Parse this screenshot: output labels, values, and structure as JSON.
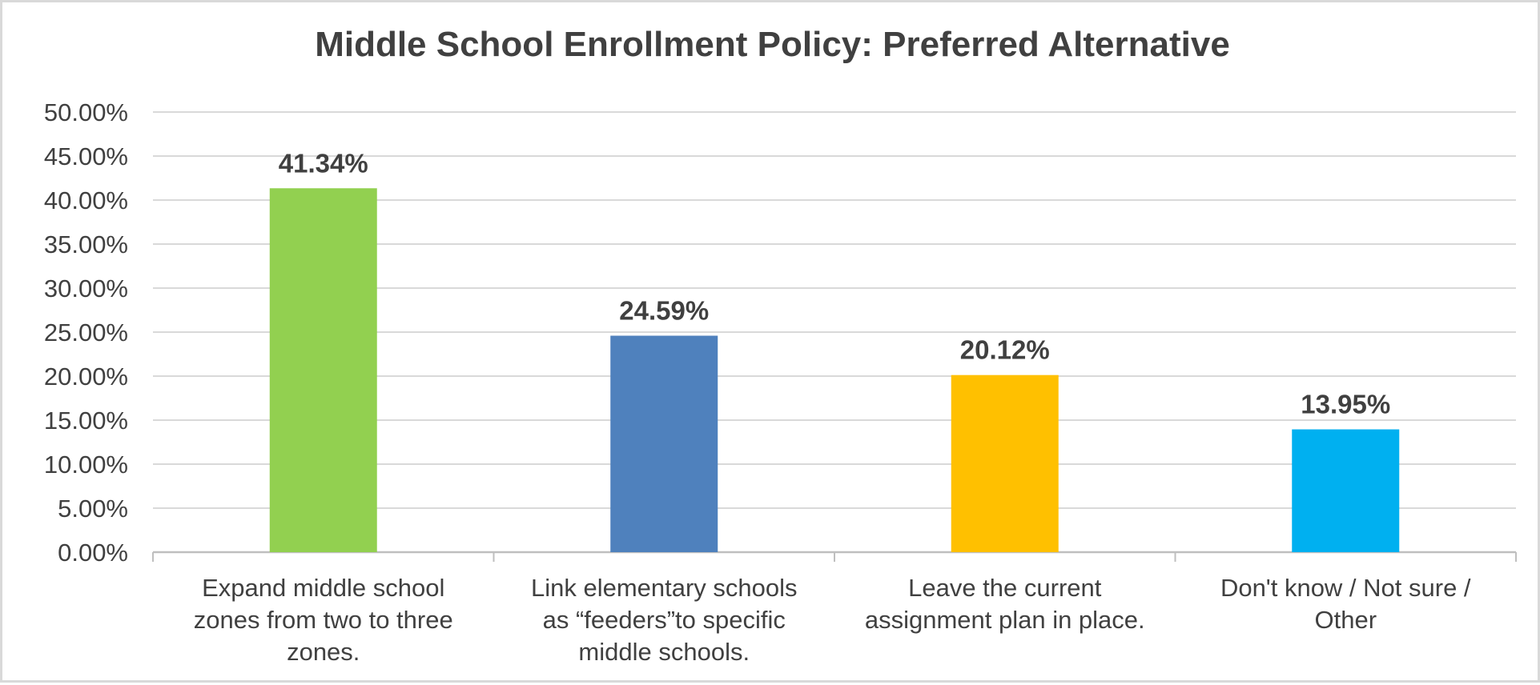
{
  "chart_data": {
    "type": "bar",
    "title": "Middle School Enrollment Policy: Preferred Alternative",
    "xlabel": "",
    "ylabel": "",
    "ylim": [
      0,
      50
    ],
    "y_ticks": [
      "0.00%",
      "5.00%",
      "10.00%",
      "15.00%",
      "20.00%",
      "25.00%",
      "30.00%",
      "35.00%",
      "40.00%",
      "45.00%",
      "50.00%"
    ],
    "grid": true,
    "legend": "none",
    "categories": [
      [
        "Expand  middle school",
        "zones from two to three",
        "zones."
      ],
      [
        "Link elementary schools",
        "as “feeders”to specific",
        "middle schools."
      ],
      [
        "Leave the current",
        "assignment plan in place."
      ],
      [
        "Don't know / Not sure /",
        "Other"
      ]
    ],
    "values": [
      41.34,
      24.59,
      20.12,
      13.95
    ],
    "data_labels": [
      "41.34%",
      "24.59%",
      "20.12%",
      "13.95%"
    ],
    "colors": [
      "#92d050",
      "#4f81bd",
      "#ffc000",
      "#00b0f0"
    ]
  }
}
